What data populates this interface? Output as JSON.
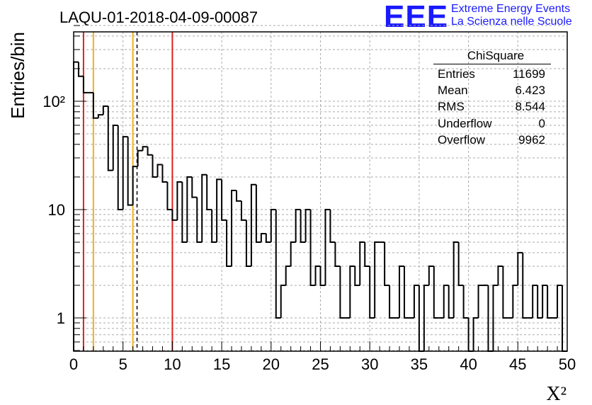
{
  "header": {
    "title": "LAQU-01-2018-04-09-00087",
    "logo_text": "EEE",
    "logo_line1": "Extreme Energy Events",
    "logo_line2": "La Scienza nelle Scuole"
  },
  "stats": {
    "title": "ChiSquare",
    "rows": [
      {
        "label": "Entries",
        "value": "11699"
      },
      {
        "label": "Mean",
        "value": "6.423"
      },
      {
        "label": "RMS",
        "value": "8.544"
      },
      {
        "label": "Underflow",
        "value": "0"
      },
      {
        "label": "Overflow",
        "value": "9962"
      }
    ]
  },
  "colors": {
    "histogram": "#000000",
    "red_lines": "#dd2222",
    "orange_lines": "#f0b020",
    "grid": "#aaaaaa"
  },
  "chart_data": {
    "type": "bar",
    "style": "step-histogram",
    "title": "LAQU-01-2018-04-09-00087",
    "xlabel": "X²",
    "ylabel": "Entries/bin",
    "x_scale": "linear",
    "y_scale": "log",
    "xlim": [
      0,
      50
    ],
    "ylim": [
      0.5,
      500
    ],
    "grid": true,
    "bin_width": 0.5,
    "x_ticks": [
      "0",
      "5",
      "10",
      "15",
      "20",
      "25",
      "30",
      "35",
      "40",
      "45",
      "50"
    ],
    "y_ticks": [
      "1",
      "10",
      "10²"
    ],
    "values": [
      230,
      170,
      120,
      120,
      70,
      75,
      90,
      23,
      60,
      10,
      47,
      11,
      25,
      35,
      38,
      32,
      20,
      26,
      18,
      10,
      8,
      18,
      5,
      20,
      13,
      5,
      21,
      10,
      5,
      19,
      8,
      3,
      15,
      12,
      8,
      3,
      17,
      5,
      6,
      5,
      10,
      1,
      2,
      3,
      5,
      10,
      5,
      10,
      2,
      3,
      2,
      10,
      5,
      3,
      1,
      1,
      3,
      2,
      5,
      3,
      1,
      5,
      5,
      2,
      1,
      1,
      3,
      1,
      1,
      2,
      0,
      2,
      3,
      1,
      1,
      2,
      1,
      5,
      2,
      1,
      0,
      1,
      2,
      2,
      0,
      2,
      3,
      1,
      1,
      2,
      4,
      1,
      1,
      2,
      1,
      2,
      1,
      1,
      2,
      0
    ],
    "markers": [
      {
        "x": 1.0,
        "style": "red-solid"
      },
      {
        "x": 2.0,
        "style": "orange-solid"
      },
      {
        "x": 6.0,
        "style": "orange-solid"
      },
      {
        "x": 6.423,
        "style": "black-dashed"
      },
      {
        "x": 10.0,
        "style": "red-solid"
      }
    ]
  }
}
